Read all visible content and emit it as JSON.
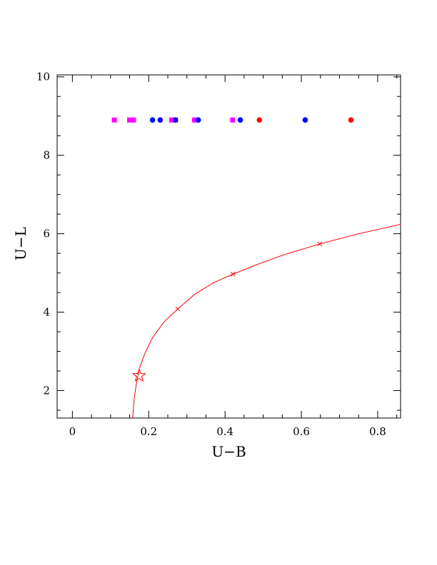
{
  "chart_data": {
    "type": "scatter",
    "title": "",
    "xlabel": "U−B",
    "ylabel": "U−L",
    "xlim": [
      -0.04,
      0.86
    ],
    "ylim": [
      1.3,
      10.05
    ],
    "xticks": [
      0,
      0.2,
      0.4,
      0.6,
      0.8
    ],
    "xtick_labels": [
      "0",
      "0.2",
      "0.4",
      "0.6",
      "0.8"
    ],
    "yticks": [
      2,
      4,
      6,
      8,
      10
    ],
    "ytick_labels": [
      "2",
      "4",
      "6",
      "8",
      "10"
    ],
    "x_minor_step": 0.05,
    "y_minor_step": 0.5,
    "grid": false,
    "legend": "none",
    "colors": {
      "red": "#ff0000",
      "blue": "#0000ff",
      "magenta": "#ff00ff",
      "axis": "#000000"
    },
    "series": [
      {
        "marker": "square",
        "color": "#ff00ff",
        "x": [
          0.11,
          0.15,
          0.16,
          0.26,
          0.27,
          0.32,
          0.42
        ],
        "y": [
          8.9,
          8.9,
          8.9,
          8.9,
          8.9,
          8.9,
          8.9
        ]
      },
      {
        "marker": "circle",
        "color": "#0000ff",
        "x": [
          0.21,
          0.23,
          0.27,
          0.33,
          0.44,
          0.61
        ],
        "y": [
          8.9,
          8.9,
          8.9,
          8.9,
          8.9,
          8.9
        ]
      },
      {
        "marker": "circle",
        "color": "#ff0000",
        "x": [
          0.49,
          0.73
        ],
        "y": [
          8.9,
          8.9
        ]
      },
      {
        "marker": "line",
        "color": "#ff0000",
        "x": [
          0.158,
          0.162,
          0.168,
          0.175,
          0.19,
          0.21,
          0.24,
          0.276,
          0.32,
          0.37,
          0.421,
          0.48,
          0.55,
          0.648,
          0.75,
          0.86
        ],
        "y": [
          1.3,
          1.8,
          2.2,
          2.55,
          2.95,
          3.35,
          3.75,
          4.08,
          4.45,
          4.75,
          4.97,
          5.2,
          5.45,
          5.74,
          6.0,
          6.24
        ]
      },
      {
        "marker": "cross",
        "color": "#ff0000",
        "x": [
          0.276,
          0.421,
          0.648
        ],
        "y": [
          4.08,
          4.97,
          5.74
        ]
      },
      {
        "marker": "star",
        "color": "#ff0000",
        "x": [
          0.175
        ],
        "y": [
          2.38
        ]
      }
    ]
  }
}
